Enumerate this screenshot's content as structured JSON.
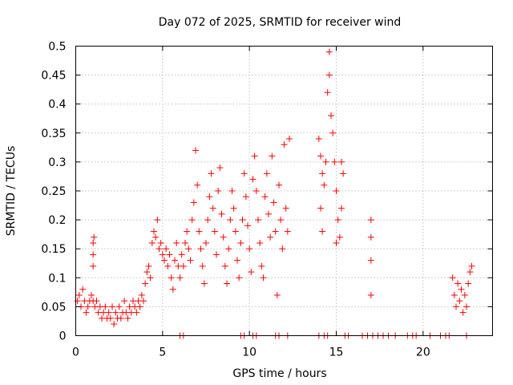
{
  "chart_data": {
    "type": "scatter",
    "title": "Day 072 of 2025, SRMTID for receiver wind",
    "xlabel": "GPS time / hours",
    "ylabel": "SRMTID / TECUs",
    "xlim": [
      0,
      24
    ],
    "ylim": [
      0,
      0.5
    ],
    "xticks": [
      0,
      5,
      10,
      15,
      20
    ],
    "xtick_labels": [
      "0",
      "5",
      "10",
      "15",
      "20"
    ],
    "yticks": [
      0,
      0.05,
      0.1,
      0.15,
      0.2,
      0.25,
      0.3,
      0.35,
      0.4,
      0.45,
      0.5
    ],
    "ytick_labels": [
      "0",
      "0.05",
      "0.1",
      "0.15",
      "0.2",
      "0.25",
      "0.3",
      "0.35",
      "0.4",
      "0.45",
      "0.5"
    ],
    "grid": true,
    "marker": "+",
    "color": "#ff0000",
    "series": [
      {
        "name": "SRMTID",
        "points": [
          [
            0.1,
            0.06
          ],
          [
            0.2,
            0.07
          ],
          [
            0.3,
            0.05
          ],
          [
            0.4,
            0.08
          ],
          [
            0.5,
            0.06
          ],
          [
            0.6,
            0.04
          ],
          [
            0.7,
            0.05
          ],
          [
            0.8,
            0.06
          ],
          [
            0.9,
            0.07
          ],
          [
            1.0,
            0.06
          ],
          [
            1.0,
            0.14
          ],
          [
            1.0,
            0.16
          ],
          [
            1.05,
            0.17
          ],
          [
            1.0,
            0.12
          ],
          [
            1.1,
            0.05
          ],
          [
            1.2,
            0.06
          ],
          [
            1.3,
            0.04
          ],
          [
            1.4,
            0.05
          ],
          [
            1.5,
            0.03
          ],
          [
            1.6,
            0.04
          ],
          [
            1.7,
            0.05
          ],
          [
            1.8,
            0.03
          ],
          [
            1.9,
            0.04
          ],
          [
            2.0,
            0.03
          ],
          [
            2.1,
            0.05
          ],
          [
            2.2,
            0.02
          ],
          [
            2.3,
            0.04
          ],
          [
            2.4,
            0.03
          ],
          [
            2.5,
            0.05
          ],
          [
            2.6,
            0.03
          ],
          [
            2.7,
            0.04
          ],
          [
            2.8,
            0.06
          ],
          [
            2.9,
            0.04
          ],
          [
            3.0,
            0.03
          ],
          [
            3.1,
            0.05
          ],
          [
            3.2,
            0.04
          ],
          [
            3.3,
            0.06
          ],
          [
            3.4,
            0.05
          ],
          [
            3.5,
            0.04
          ],
          [
            3.6,
            0.06
          ],
          [
            3.7,
            0.05
          ],
          [
            3.8,
            0.07
          ],
          [
            3.9,
            0.06
          ],
          [
            4.0,
            0.09
          ],
          [
            4.1,
            0.11
          ],
          [
            4.2,
            0.12
          ],
          [
            4.3,
            0.1
          ],
          [
            4.4,
            0.16
          ],
          [
            4.5,
            0.18
          ],
          [
            4.6,
            0.17
          ],
          [
            4.7,
            0.2
          ],
          [
            4.8,
            0.15
          ],
          [
            4.9,
            0.16
          ],
          [
            5.0,
            0.14
          ],
          [
            5.1,
            0.13
          ],
          [
            5.2,
            0.15
          ],
          [
            5.3,
            0.12
          ],
          [
            5.4,
            0.14
          ],
          [
            5.5,
            0.1
          ],
          [
            5.6,
            0.08
          ],
          [
            5.7,
            0.13
          ],
          [
            5.8,
            0.16
          ],
          [
            5.9,
            0.12
          ],
          [
            6.0,
            0.1
          ],
          [
            6.1,
            0.14
          ],
          [
            6.2,
            0.12
          ],
          [
            6.3,
            0.16
          ],
          [
            6.4,
            0.18
          ],
          [
            6.5,
            0.15
          ],
          [
            6.6,
            0.13
          ],
          [
            6.7,
            0.2
          ],
          [
            6.8,
            0.23
          ],
          [
            6.9,
            0.32
          ],
          [
            7.0,
            0.26
          ],
          [
            7.1,
            0.18
          ],
          [
            7.2,
            0.15
          ],
          [
            7.3,
            0.12
          ],
          [
            7.4,
            0.09
          ],
          [
            7.5,
            0.16
          ],
          [
            7.6,
            0.2
          ],
          [
            7.7,
            0.24
          ],
          [
            7.8,
            0.28
          ],
          [
            7.9,
            0.22
          ],
          [
            8.0,
            0.18
          ],
          [
            8.1,
            0.14
          ],
          [
            8.2,
            0.25
          ],
          [
            8.3,
            0.29
          ],
          [
            8.4,
            0.21
          ],
          [
            8.5,
            0.17
          ],
          [
            8.6,
            0.12
          ],
          [
            8.7,
            0.09
          ],
          [
            8.8,
            0.15
          ],
          [
            8.9,
            0.2
          ],
          [
            9.0,
            0.25
          ],
          [
            9.1,
            0.22
          ],
          [
            9.2,
            0.18
          ],
          [
            9.3,
            0.13
          ],
          [
            9.4,
            0.1
          ],
          [
            9.5,
            0.16
          ],
          [
            9.6,
            0.2
          ],
          [
            9.7,
            0.28
          ],
          [
            9.8,
            0.24
          ],
          [
            9.9,
            0.19
          ],
          [
            10.0,
            0.15
          ],
          [
            10.1,
            0.11
          ],
          [
            10.2,
            0.27
          ],
          [
            10.3,
            0.31
          ],
          [
            10.4,
            0.25
          ],
          [
            10.5,
            0.2
          ],
          [
            10.6,
            0.16
          ],
          [
            10.7,
            0.12
          ],
          [
            10.8,
            0.1
          ],
          [
            10.9,
            0.24
          ],
          [
            11.0,
            0.28
          ],
          [
            11.1,
            0.21
          ],
          [
            11.2,
            0.17
          ],
          [
            11.3,
            0.31
          ],
          [
            11.4,
            0.23
          ],
          [
            11.5,
            0.18
          ],
          [
            11.6,
            0.07
          ],
          [
            11.7,
            0.26
          ],
          [
            11.8,
            0.2
          ],
          [
            11.9,
            0.15
          ],
          [
            12.0,
            0.33
          ],
          [
            12.1,
            0.22
          ],
          [
            12.2,
            0.18
          ],
          [
            12.3,
            0.34
          ],
          [
            14.0,
            0.34
          ],
          [
            14.1,
            0.31
          ],
          [
            14.2,
            0.28
          ],
          [
            14.1,
            0.22
          ],
          [
            14.2,
            0.18
          ],
          [
            14.3,
            0.26
          ],
          [
            14.4,
            0.3
          ],
          [
            14.5,
            0.42
          ],
          [
            14.6,
            0.49
          ],
          [
            14.6,
            0.45
          ],
          [
            14.7,
            0.38
          ],
          [
            14.8,
            0.35
          ],
          [
            14.9,
            0.3
          ],
          [
            15.0,
            0.25
          ],
          [
            15.0,
            0.16
          ],
          [
            15.1,
            0.2
          ],
          [
            15.2,
            0.17
          ],
          [
            15.3,
            0.3
          ],
          [
            15.3,
            0.22
          ],
          [
            15.4,
            0.28
          ],
          [
            17.0,
            0.2
          ],
          [
            17.0,
            0.17
          ],
          [
            17.0,
            0.13
          ],
          [
            17.0,
            0.07
          ],
          [
            21.7,
            0.1
          ],
          [
            21.8,
            0.07
          ],
          [
            21.9,
            0.05
          ],
          [
            22.0,
            0.09
          ],
          [
            22.1,
            0.06
          ],
          [
            22.2,
            0.08
          ],
          [
            22.3,
            0.04
          ],
          [
            22.4,
            0.07
          ],
          [
            22.5,
            0.05
          ],
          [
            22.6,
            0.09
          ],
          [
            22.7,
            0.11
          ],
          [
            22.8,
            0.12
          ],
          [
            6.0,
            0.0
          ],
          [
            6.2,
            0.0
          ],
          [
            9.5,
            0.0
          ],
          [
            9.7,
            0.0
          ],
          [
            10.2,
            0.0
          ],
          [
            10.4,
            0.0
          ],
          [
            11.5,
            0.0
          ],
          [
            11.7,
            0.0
          ],
          [
            12.2,
            0.0
          ],
          [
            14.0,
            0.0
          ],
          [
            14.3,
            0.0
          ],
          [
            14.5,
            0.0
          ],
          [
            15.5,
            0.0
          ],
          [
            15.7,
            0.0
          ],
          [
            16.5,
            0.0
          ],
          [
            16.8,
            0.0
          ],
          [
            17.1,
            0.0
          ],
          [
            17.4,
            0.0
          ],
          [
            17.7,
            0.0
          ],
          [
            18.0,
            0.0
          ],
          [
            18.4,
            0.0
          ],
          [
            19.1,
            0.0
          ],
          [
            19.4,
            0.0
          ],
          [
            19.6,
            0.0
          ],
          [
            20.4,
            0.0
          ],
          [
            21.0,
            0.0
          ],
          [
            21.3,
            0.0
          ],
          [
            21.5,
            0.0
          ],
          [
            22.5,
            0.0
          ]
        ]
      }
    ]
  }
}
